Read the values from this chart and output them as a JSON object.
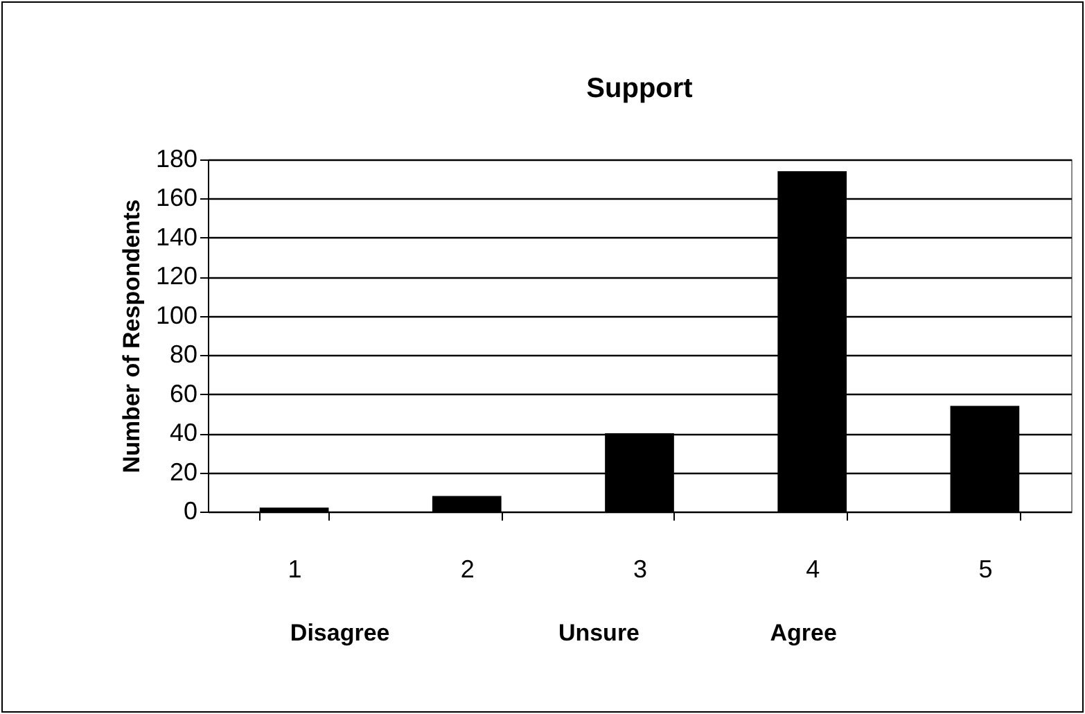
{
  "chart_data": {
    "type": "bar",
    "title": "Support",
    "ylabel": "Number of Respondents",
    "categories": [
      "1",
      "2",
      "3",
      "4",
      "5"
    ],
    "values": [
      2,
      8,
      40,
      174,
      54
    ],
    "color": "#000000",
    "ylim": [
      0,
      180
    ],
    "yticks": [
      0,
      20,
      40,
      60,
      80,
      100,
      120,
      140,
      160,
      180
    ],
    "grid": "y",
    "annotations": [
      "Disagree",
      "Unsure",
      "Agree"
    ]
  }
}
